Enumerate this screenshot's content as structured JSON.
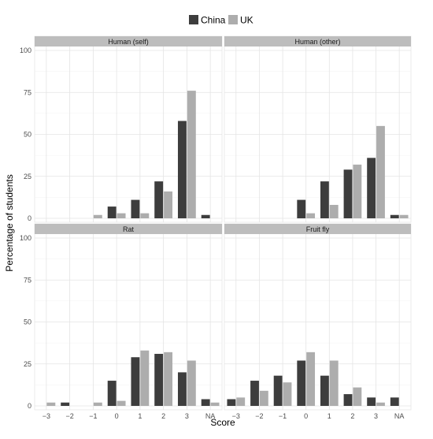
{
  "chart_data": {
    "type": "bar",
    "layout": "facet-grid-2x2",
    "xlabel": "Score",
    "ylabel": "Percentage of students",
    "ylim": [
      0,
      100
    ],
    "yticks": [
      "0",
      "25",
      "50",
      "75",
      "100"
    ],
    "categories": [
      "−3",
      "−2",
      "−1",
      "0",
      "1",
      "2",
      "3",
      "NA"
    ],
    "grid": true,
    "legend": {
      "position": "top",
      "entries": [
        {
          "name": "China",
          "color": "#3d3d3d"
        },
        {
          "name": "UK",
          "color": "#adadad"
        }
      ]
    },
    "panels": [
      {
        "title": "Human (self)",
        "series": [
          {
            "name": "China",
            "values": [
              0,
              0,
              0,
              7,
              11,
              22,
              58,
              2
            ]
          },
          {
            "name": "UK",
            "values": [
              0,
              0,
              2,
              3,
              3,
              16,
              76,
              0
            ]
          }
        ]
      },
      {
        "title": "Human (other)",
        "series": [
          {
            "name": "China",
            "values": [
              0,
              0,
              0,
              11,
              22,
              29,
              36,
              2
            ]
          },
          {
            "name": "UK",
            "values": [
              0,
              0,
              0,
              3,
              8,
              32,
              55,
              2
            ]
          }
        ]
      },
      {
        "title": "Rat",
        "series": [
          {
            "name": "China",
            "values": [
              0,
              2,
              0,
              15,
              29,
              31,
              20,
              4
            ]
          },
          {
            "name": "UK",
            "values": [
              2,
              0,
              2,
              3,
              33,
              32,
              27,
              2
            ]
          }
        ]
      },
      {
        "title": "Fruit fly",
        "series": [
          {
            "name": "China",
            "values": [
              4,
              15,
              18,
              27,
              18,
              7,
              5,
              5
            ]
          },
          {
            "name": "UK",
            "values": [
              5,
              9,
              14,
              32,
              27,
              11,
              2,
              0
            ]
          }
        ]
      }
    ]
  }
}
